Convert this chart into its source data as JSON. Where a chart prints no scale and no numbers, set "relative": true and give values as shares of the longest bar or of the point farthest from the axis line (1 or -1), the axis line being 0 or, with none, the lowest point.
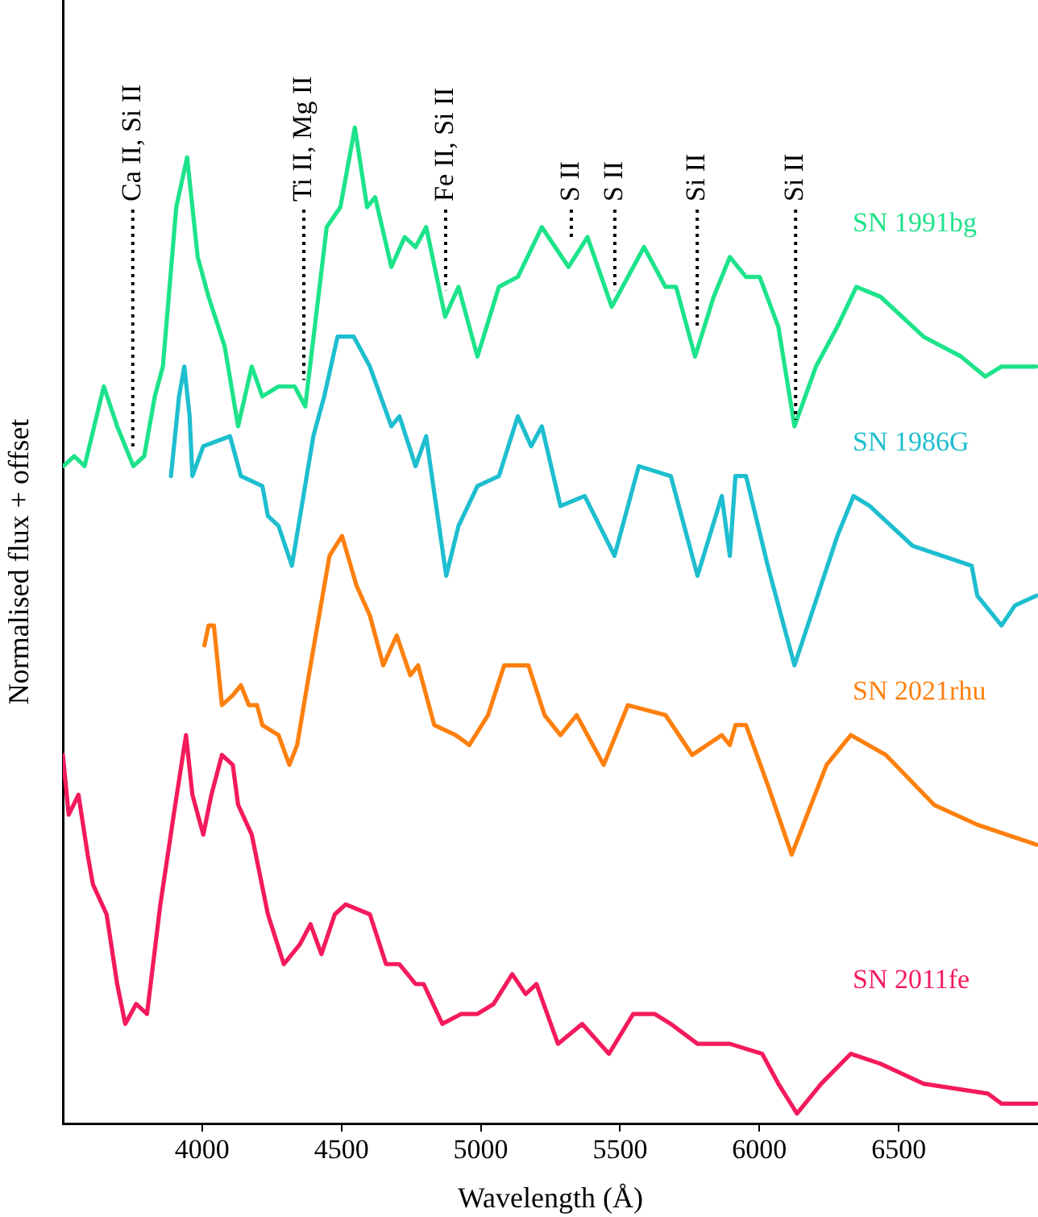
{
  "chart_data": {
    "type": "line",
    "xlabel": "Wavelength (Å)",
    "ylabel": "Normalised flux + offset",
    "relative": true,
    "xlim": [
      3500,
      7000
    ],
    "xticks": [
      4000,
      4500,
      5000,
      5500,
      6000,
      6500
    ],
    "grid": false,
    "legend": false,
    "marker": "none",
    "line_style": "solid",
    "series": [
      {
        "name": "SN 1991bg",
        "color": "#1de38a",
        "x": [
          3502,
          3541,
          3578,
          3647,
          3695,
          3753,
          3792,
          3830,
          3859,
          3907,
          3946,
          3984,
          4023,
          4081,
          4129,
          4178,
          4216,
          4274,
          4332,
          4370,
          4447,
          4496,
          4548,
          4592,
          4621,
          4679,
          4727,
          4766,
          4804,
          4872,
          4920,
          4988,
          5065,
          5133,
          5219,
          5315,
          5383,
          5470,
          5586,
          5663,
          5701,
          5769,
          5836,
          5894,
          5952,
          6001,
          6068,
          6126,
          6203,
          6280,
          6348,
          6435,
          6589,
          6724,
          6811,
          6869,
          6994
        ],
        "values": [
          0.66,
          0.67,
          0.66,
          0.74,
          0.7,
          0.66,
          0.67,
          0.73,
          0.76,
          0.92,
          0.97,
          0.87,
          0.83,
          0.78,
          0.7,
          0.76,
          0.73,
          0.74,
          0.74,
          0.72,
          0.9,
          0.92,
          1,
          0.92,
          0.93,
          0.86,
          0.89,
          0.88,
          0.9,
          0.81,
          0.84,
          0.77,
          0.84,
          0.85,
          0.9,
          0.86,
          0.89,
          0.82,
          0.88,
          0.84,
          0.84,
          0.77,
          0.83,
          0.87,
          0.85,
          0.85,
          0.8,
          0.7,
          0.76,
          0.8,
          0.84,
          0.83,
          0.79,
          0.77,
          0.75,
          0.76,
          0.76
        ]
      },
      {
        "name": "SN 1986G",
        "color": "#1ebecf",
        "x": [
          3888,
          3917,
          3936,
          3955,
          3965,
          4004,
          4100,
          4139,
          4216,
          4236,
          4274,
          4322,
          4399,
          4438,
          4486,
          4544,
          4602,
          4679,
          4708,
          4766,
          4804,
          4876,
          4920,
          4988,
          5065,
          5133,
          5181,
          5219,
          5286,
          5373,
          5480,
          5567,
          5682,
          5778,
          5865,
          5894,
          5914,
          5952,
          6030,
          6126,
          6280,
          6338,
          6396,
          6550,
          6762,
          6782,
          6869,
          6917,
          6994
        ],
        "values": [
          0.65,
          0.73,
          0.76,
          0.71,
          0.65,
          0.68,
          0.69,
          0.65,
          0.64,
          0.61,
          0.6,
          0.56,
          0.69,
          0.73,
          0.79,
          0.79,
          0.76,
          0.7,
          0.71,
          0.66,
          0.69,
          0.55,
          0.6,
          0.64,
          0.65,
          0.71,
          0.68,
          0.7,
          0.62,
          0.63,
          0.57,
          0.66,
          0.65,
          0.55,
          0.63,
          0.57,
          0.65,
          0.65,
          0.56,
          0.46,
          0.59,
          0.63,
          0.62,
          0.58,
          0.56,
          0.53,
          0.5,
          0.52,
          0.53
        ]
      },
      {
        "name": "SN 2021rhu",
        "color": "#fd800e",
        "x": [
          4008,
          4023,
          4042,
          4071,
          4110,
          4139,
          4168,
          4197,
          4216,
          4274,
          4313,
          4341,
          4389,
          4457,
          4502,
          4554,
          4602,
          4650,
          4698,
          4747,
          4775,
          4833,
          4910,
          4959,
          5026,
          5084,
          5133,
          5171,
          5229,
          5286,
          5344,
          5441,
          5528,
          5663,
          5759,
          5865,
          5894,
          5914,
          5952,
          6030,
          6116,
          6241,
          6328,
          6454,
          6627,
          6782,
          6994
        ],
        "values": [
          0.48,
          0.5,
          0.5,
          0.42,
          0.43,
          0.44,
          0.42,
          0.42,
          0.4,
          0.39,
          0.36,
          0.38,
          0.46,
          0.57,
          0.59,
          0.54,
          0.51,
          0.46,
          0.49,
          0.45,
          0.46,
          0.4,
          0.39,
          0.38,
          0.41,
          0.46,
          0.46,
          0.46,
          0.41,
          0.39,
          0.41,
          0.36,
          0.42,
          0.41,
          0.37,
          0.39,
          0.38,
          0.4,
          0.4,
          0.34,
          0.27,
          0.36,
          0.39,
          0.37,
          0.32,
          0.3,
          0.28
        ]
      },
      {
        "name": "SN 2011fe",
        "color": "#f41a5c",
        "x": [
          3500,
          3521,
          3556,
          3589,
          3608,
          3657,
          3695,
          3724,
          3763,
          3802,
          3850,
          3898,
          3942,
          3965,
          4004,
          4033,
          4071,
          4110,
          4129,
          4178,
          4236,
          4293,
          4351,
          4389,
          4428,
          4476,
          4515,
          4602,
          4660,
          4708,
          4766,
          4795,
          4862,
          4930,
          4988,
          5046,
          5113,
          5161,
          5200,
          5277,
          5364,
          5460,
          5547,
          5624,
          5682,
          5778,
          5894,
          6010,
          6068,
          6135,
          6222,
          6328,
          6435,
          6589,
          6820,
          6869,
          6917,
          6994
        ],
        "values": [
          0.37,
          0.31,
          0.33,
          0.27,
          0.24,
          0.21,
          0.14,
          0.1,
          0.12,
          0.11,
          0.22,
          0.31,
          0.39,
          0.33,
          0.29,
          0.33,
          0.37,
          0.36,
          0.32,
          0.29,
          0.21,
          0.16,
          0.18,
          0.2,
          0.17,
          0.21,
          0.22,
          0.21,
          0.16,
          0.16,
          0.14,
          0.14,
          0.1,
          0.11,
          0.11,
          0.12,
          0.15,
          0.13,
          0.14,
          0.08,
          0.1,
          0.07,
          0.11,
          0.11,
          0.1,
          0.08,
          0.08,
          0.07,
          0.04,
          0.01,
          0.04,
          0.07,
          0.06,
          0.04,
          0.03,
          0.02,
          0.02,
          0.02
        ]
      }
    ],
    "annotations": [
      {
        "text": "Ca II, Si II",
        "x": 3751,
        "y": 0.67
      },
      {
        "text": "Ti II, Mg II",
        "x": 4365,
        "y": 0.74
      },
      {
        "text": "Fe II, Si II",
        "x": 4874,
        "y": 0.83
      },
      {
        "text": "S II",
        "x": 5325,
        "y": 0.88
      },
      {
        "text": "S II",
        "x": 5481,
        "y": 0.83
      },
      {
        "text": "Si II",
        "x": 5777,
        "y": 0.79
      },
      {
        "text": "Si II",
        "x": 6130,
        "y": 0.7
      }
    ]
  }
}
